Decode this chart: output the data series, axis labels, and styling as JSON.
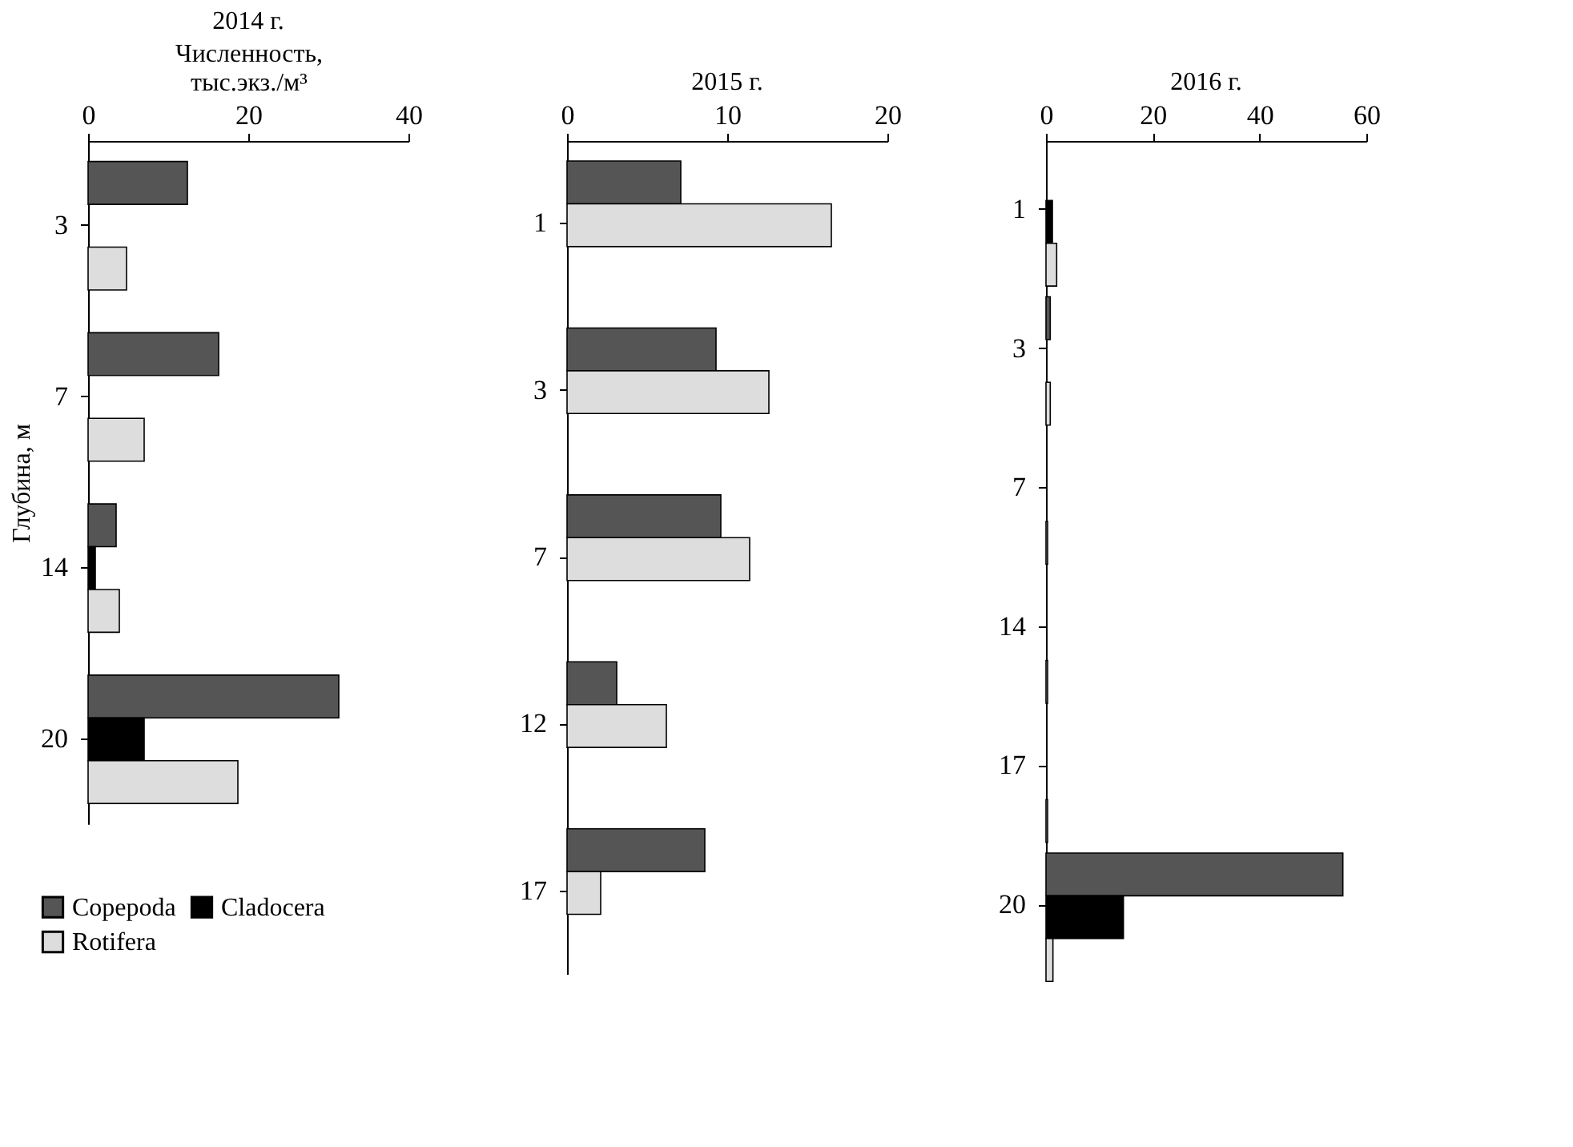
{
  "chart_data": [
    {
      "type": "bar",
      "orientation": "horizontal",
      "title": "2014 г.",
      "xlabel": "Численность,\nтыс.экз./м³",
      "ylabel": "Глубина, м",
      "categories": [
        "3",
        "7",
        "14",
        "20"
      ],
      "xlim": [
        0,
        40
      ],
      "xticks": [
        0,
        20,
        40
      ],
      "legend": "bottom left",
      "series": [
        {
          "name": "Copepoda",
          "color": "#555555",
          "values": [
            12.4,
            16.3,
            3.5,
            31.3
          ]
        },
        {
          "name": "Cladocera",
          "color": "#000000",
          "values": [
            0,
            0,
            0.9,
            7
          ]
        },
        {
          "name": "Rotifera",
          "color": "#dddddd",
          "values": [
            4.8,
            7,
            3.9,
            18.7
          ]
        }
      ]
    },
    {
      "type": "bar",
      "orientation": "horizontal",
      "title": "2015 г.",
      "categories": [
        "1",
        "3",
        "7",
        "12",
        "17"
      ],
      "xlim": [
        0,
        20
      ],
      "xticks": [
        0,
        10,
        20
      ],
      "series": [
        {
          "color": "#555555",
          "values": [
            7.1,
            9.3,
            9.6,
            3.1,
            8.6
          ]
        },
        {
          "color": "#dddddd",
          "values": [
            16.5,
            12.6,
            11.4,
            6.2,
            2.1
          ]
        }
      ]
    },
    {
      "type": "bar",
      "orientation": "horizontal",
      "title": "2016 г.",
      "categories": [
        "1",
        "3",
        "7",
        "14",
        "17",
        "20"
      ],
      "xlim": [
        0,
        60
      ],
      "xticks": [
        0,
        20,
        40,
        60
      ],
      "series": [
        {
          "color": "#555555",
          "values": [
            0,
            0.8,
            0,
            0,
            0,
            55.6
          ]
        },
        {
          "color": "#000000",
          "values": [
            1.2,
            0,
            0,
            0,
            0,
            14.5
          ]
        },
        {
          "color": "#dddddd",
          "values": [
            2,
            0.8,
            0.3,
            0.3,
            0.3,
            1.3
          ]
        }
      ]
    }
  ]
}
